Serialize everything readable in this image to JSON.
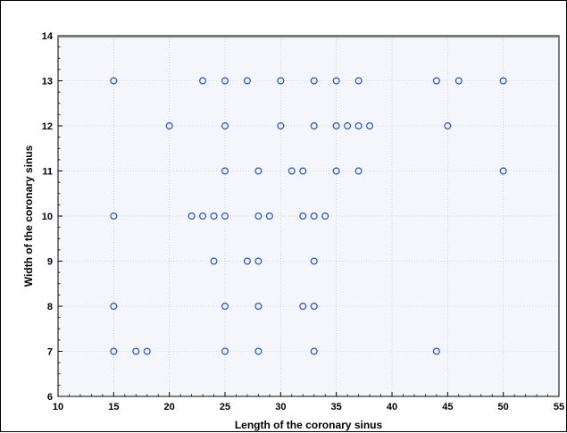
{
  "chart_data": {
    "type": "scatter",
    "title": "",
    "xlabel": "Length of the coronary sinus",
    "ylabel": "Width of the coronary sinus",
    "xlim": [
      10,
      55
    ],
    "ylim": [
      6,
      14
    ],
    "xticks": [
      "10",
      "15",
      "20",
      "25",
      "30",
      "35",
      "40",
      "45",
      "50",
      "55"
    ],
    "yticks": [
      "6",
      "7",
      "8",
      "9",
      "10",
      "11",
      "12",
      "13",
      "14"
    ],
    "grid": true,
    "marker_color": "#2255cc",
    "plot_background": "#f4f6fb",
    "points": [
      {
        "x": 15,
        "y": 13
      },
      {
        "x": 23,
        "y": 13
      },
      {
        "x": 25,
        "y": 13
      },
      {
        "x": 27,
        "y": 13
      },
      {
        "x": 30,
        "y": 13
      },
      {
        "x": 33,
        "y": 13
      },
      {
        "x": 35,
        "y": 13
      },
      {
        "x": 37,
        "y": 13
      },
      {
        "x": 44,
        "y": 13
      },
      {
        "x": 46,
        "y": 13
      },
      {
        "x": 50,
        "y": 13
      },
      {
        "x": 20,
        "y": 12
      },
      {
        "x": 25,
        "y": 12
      },
      {
        "x": 30,
        "y": 12
      },
      {
        "x": 33,
        "y": 12
      },
      {
        "x": 35,
        "y": 12
      },
      {
        "x": 36,
        "y": 12
      },
      {
        "x": 37,
        "y": 12
      },
      {
        "x": 38,
        "y": 12
      },
      {
        "x": 45,
        "y": 12
      },
      {
        "x": 25,
        "y": 11
      },
      {
        "x": 28,
        "y": 11
      },
      {
        "x": 31,
        "y": 11
      },
      {
        "x": 32,
        "y": 11
      },
      {
        "x": 35,
        "y": 11
      },
      {
        "x": 37,
        "y": 11
      },
      {
        "x": 50,
        "y": 11
      },
      {
        "x": 15,
        "y": 10
      },
      {
        "x": 22,
        "y": 10
      },
      {
        "x": 23,
        "y": 10
      },
      {
        "x": 24,
        "y": 10
      },
      {
        "x": 25,
        "y": 10
      },
      {
        "x": 28,
        "y": 10
      },
      {
        "x": 29,
        "y": 10
      },
      {
        "x": 32,
        "y": 10
      },
      {
        "x": 33,
        "y": 10
      },
      {
        "x": 34,
        "y": 10
      },
      {
        "x": 24,
        "y": 9
      },
      {
        "x": 27,
        "y": 9
      },
      {
        "x": 28,
        "y": 9
      },
      {
        "x": 33,
        "y": 9
      },
      {
        "x": 15,
        "y": 8
      },
      {
        "x": 25,
        "y": 8
      },
      {
        "x": 28,
        "y": 8
      },
      {
        "x": 32,
        "y": 8
      },
      {
        "x": 33,
        "y": 8
      },
      {
        "x": 15,
        "y": 7
      },
      {
        "x": 17,
        "y": 7
      },
      {
        "x": 18,
        "y": 7
      },
      {
        "x": 25,
        "y": 7
      },
      {
        "x": 28,
        "y": 7
      },
      {
        "x": 33,
        "y": 7
      },
      {
        "x": 44,
        "y": 7
      }
    ]
  }
}
